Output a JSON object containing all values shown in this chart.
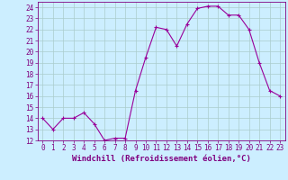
{
  "x": [
    0,
    1,
    2,
    3,
    4,
    5,
    6,
    7,
    8,
    9,
    10,
    11,
    12,
    13,
    14,
    15,
    16,
    17,
    18,
    19,
    20,
    21,
    22,
    23
  ],
  "y": [
    14,
    13,
    14,
    14,
    14.5,
    13.5,
    12,
    12.2,
    12.2,
    16.5,
    19.5,
    22.2,
    22,
    20.5,
    22.5,
    23.9,
    24.1,
    24.1,
    23.3,
    23.3,
    22,
    19,
    16.5,
    16
  ],
  "line_color": "#990099",
  "marker": "+",
  "marker_color": "#990099",
  "bg_color": "#cceeff",
  "grid_color": "#aacccc",
  "xlabel": "Windchill (Refroidissement éolien,°C)",
  "ylim": [
    12,
    24.5
  ],
  "xlim": [
    -0.5,
    23.5
  ],
  "yticks": [
    12,
    13,
    14,
    15,
    16,
    17,
    18,
    19,
    20,
    21,
    22,
    23,
    24
  ],
  "xticks": [
    0,
    1,
    2,
    3,
    4,
    5,
    6,
    7,
    8,
    9,
    10,
    11,
    12,
    13,
    14,
    15,
    16,
    17,
    18,
    19,
    20,
    21,
    22,
    23
  ],
  "tick_color": "#800080",
  "label_fontsize": 6.5,
  "tick_fontsize": 5.5,
  "linewidth": 0.8,
  "markersize": 3
}
